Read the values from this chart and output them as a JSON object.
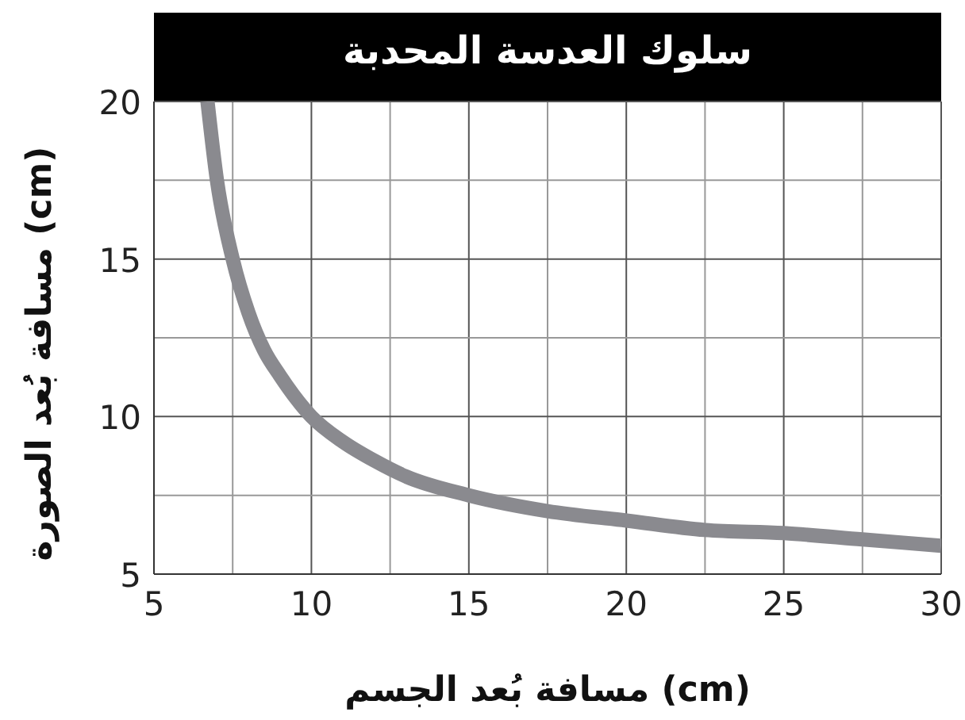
{
  "chart_data": {
    "type": "line",
    "title": "سلوك العدسة المحدبة",
    "xlabel": "مسافة بُعد الجسم (cm)",
    "ylabel": "مسافة بُعد الصورة (cm)",
    "x": [
      6.7,
      7,
      7.5,
      8,
      8.5,
      9,
      10,
      11,
      12,
      13,
      15,
      17.5,
      20,
      22.5,
      25,
      27.5,
      30
    ],
    "series": [
      {
        "color": "#8a8a8f",
        "values": [
          20,
          17.5,
          15,
          13.3,
          12.1,
          11.3,
          10,
          9.2,
          8.6,
          8.1,
          7.5,
          7,
          6.7,
          6.4,
          6.3,
          6.1,
          5.9
        ]
      }
    ],
    "xlim": [
      5,
      30
    ],
    "ylim": [
      5,
      20
    ],
    "xticks": [
      5,
      {
        "value": 7.5,
        "label": null
      },
      10,
      {
        "value": 12.5,
        "label": null
      },
      15,
      {
        "value": 17.5,
        "label": null
      },
      20,
      {
        "value": 22.5,
        "label": null
      },
      25,
      {
        "value": 27.5,
        "label": null
      },
      30
    ],
    "yticks": [
      5,
      {
        "value": 7.5,
        "label": null
      },
      10,
      {
        "value": 12.5,
        "label": null
      },
      15,
      {
        "value": 17.5,
        "label": null
      },
      20
    ],
    "grid": true,
    "marker": "none",
    "line_style": "solid"
  }
}
